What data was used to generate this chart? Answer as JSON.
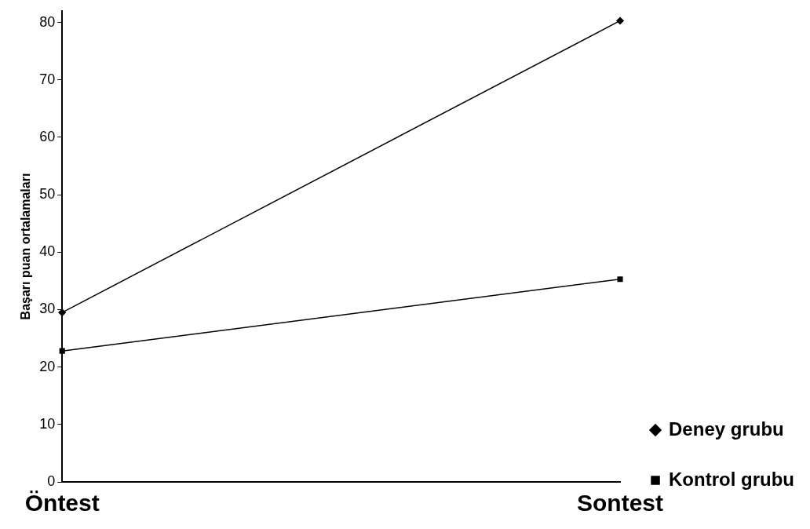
{
  "chart_data": {
    "type": "line",
    "ylabel": "Başarı puan ortalamaları",
    "categories": [
      "Öntest",
      "Sontest"
    ],
    "series": [
      {
        "name": "Deney grubu",
        "color": "#000000",
        "values": [
          29.5,
          80.3
        ],
        "marker": "diamond"
      },
      {
        "name": "Kontrol grubu",
        "color": "#000000",
        "values": [
          22.8,
          35.3
        ],
        "marker": "square"
      }
    ],
    "ylim": [
      0,
      82
    ],
    "yticks": [
      0,
      10,
      20,
      30,
      40,
      50,
      60,
      70,
      80
    ],
    "grid": false,
    "legend": "right",
    "line_style": "solid"
  }
}
